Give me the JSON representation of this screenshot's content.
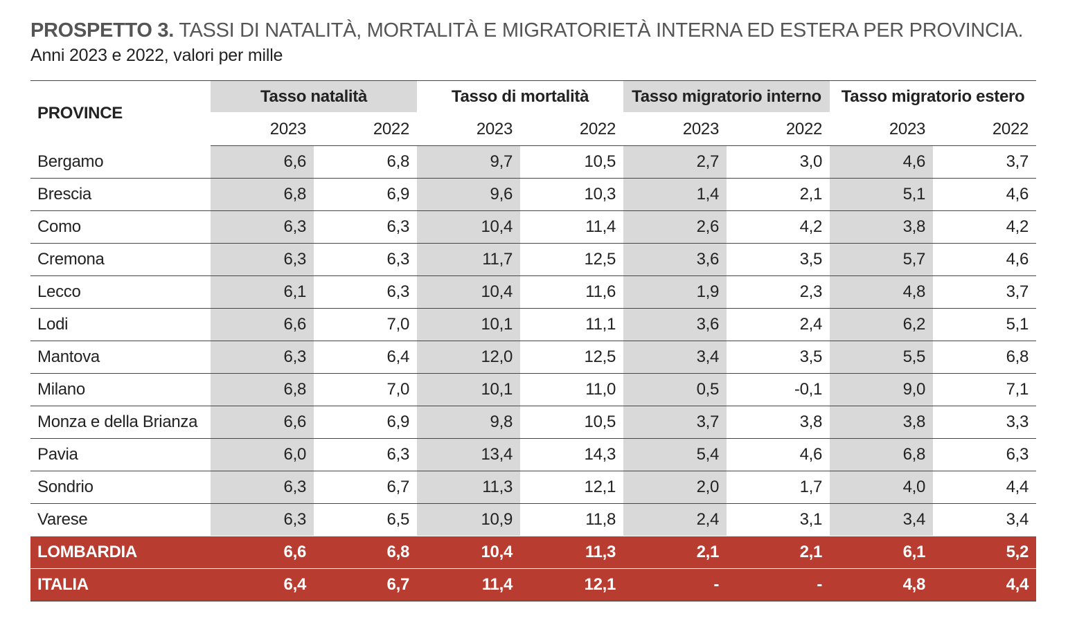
{
  "title": {
    "lead": "PROSPETTO 3.",
    "text": " TASSI DI NATALITÀ, MORTALITÀ E MIGRATORIETÀ INTERNA ED ESTERA PER PROVINCIA.",
    "subtitle": "Anni 2023 e 2022, valori per mille"
  },
  "table": {
    "province_header": "PROVINCE",
    "groups": [
      "Tasso natalità",
      "Tasso di mortalità",
      "Tasso migratorio interno",
      "Tasso migratorio estero"
    ],
    "years": [
      "2023",
      "2022",
      "2023",
      "2022",
      "2023",
      "2022",
      "2023",
      "2022"
    ],
    "rows": [
      {
        "name": "Bergamo",
        "v": [
          "6,6",
          "6,8",
          "9,7",
          "10,5",
          "2,7",
          "3,0",
          "4,6",
          "3,7"
        ]
      },
      {
        "name": "Brescia",
        "v": [
          "6,8",
          "6,9",
          "9,6",
          "10,3",
          "1,4",
          "2,1",
          "5,1",
          "4,6"
        ]
      },
      {
        "name": "Como",
        "v": [
          "6,3",
          "6,3",
          "10,4",
          "11,4",
          "2,6",
          "4,2",
          "3,8",
          "4,2"
        ]
      },
      {
        "name": "Cremona",
        "v": [
          "6,3",
          "6,3",
          "11,7",
          "12,5",
          "3,6",
          "3,5",
          "5,7",
          "4,6"
        ]
      },
      {
        "name": "Lecco",
        "v": [
          "6,1",
          "6,3",
          "10,4",
          "11,6",
          "1,9",
          "2,3",
          "4,8",
          "3,7"
        ]
      },
      {
        "name": "Lodi",
        "v": [
          "6,6",
          "7,0",
          "10,1",
          "11,1",
          "3,6",
          "2,4",
          "6,2",
          "5,1"
        ]
      },
      {
        "name": "Mantova",
        "v": [
          "6,3",
          "6,4",
          "12,0",
          "12,5",
          "3,4",
          "3,5",
          "5,5",
          "6,8"
        ]
      },
      {
        "name": "Milano",
        "v": [
          "6,8",
          "7,0",
          "10,1",
          "11,0",
          "0,5",
          "-0,1",
          "9,0",
          "7,1"
        ]
      },
      {
        "name": "Monza e della Brianza",
        "v": [
          "6,6",
          "6,9",
          "9,8",
          "10,5",
          "3,7",
          "3,8",
          "3,8",
          "3,3"
        ]
      },
      {
        "name": "Pavia",
        "v": [
          "6,0",
          "6,3",
          "13,4",
          "14,3",
          "5,4",
          "4,6",
          "6,8",
          "6,3"
        ]
      },
      {
        "name": "Sondrio",
        "v": [
          "6,3",
          "6,7",
          "11,3",
          "12,1",
          "2,0",
          "1,7",
          "4,0",
          "4,4"
        ]
      },
      {
        "name": "Varese",
        "v": [
          "6,3",
          "6,5",
          "10,9",
          "11,8",
          "2,4",
          "3,1",
          "3,4",
          "3,4"
        ]
      }
    ],
    "totals": [
      {
        "name": "LOMBARDIA",
        "v": [
          "6,6",
          "6,8",
          "10,4",
          "11,3",
          "2,1",
          "2,1",
          "6,1",
          "5,2"
        ]
      },
      {
        "name": "ITALIA",
        "v": [
          "6,4",
          "6,7",
          "11,4",
          "12,1",
          "-",
          "-",
          "4,8",
          "4,4"
        ]
      }
    ]
  },
  "colors": {
    "header_grey": "#d9d9d9",
    "total_row_red": "#b83c2f",
    "title_grey": "#555555"
  }
}
